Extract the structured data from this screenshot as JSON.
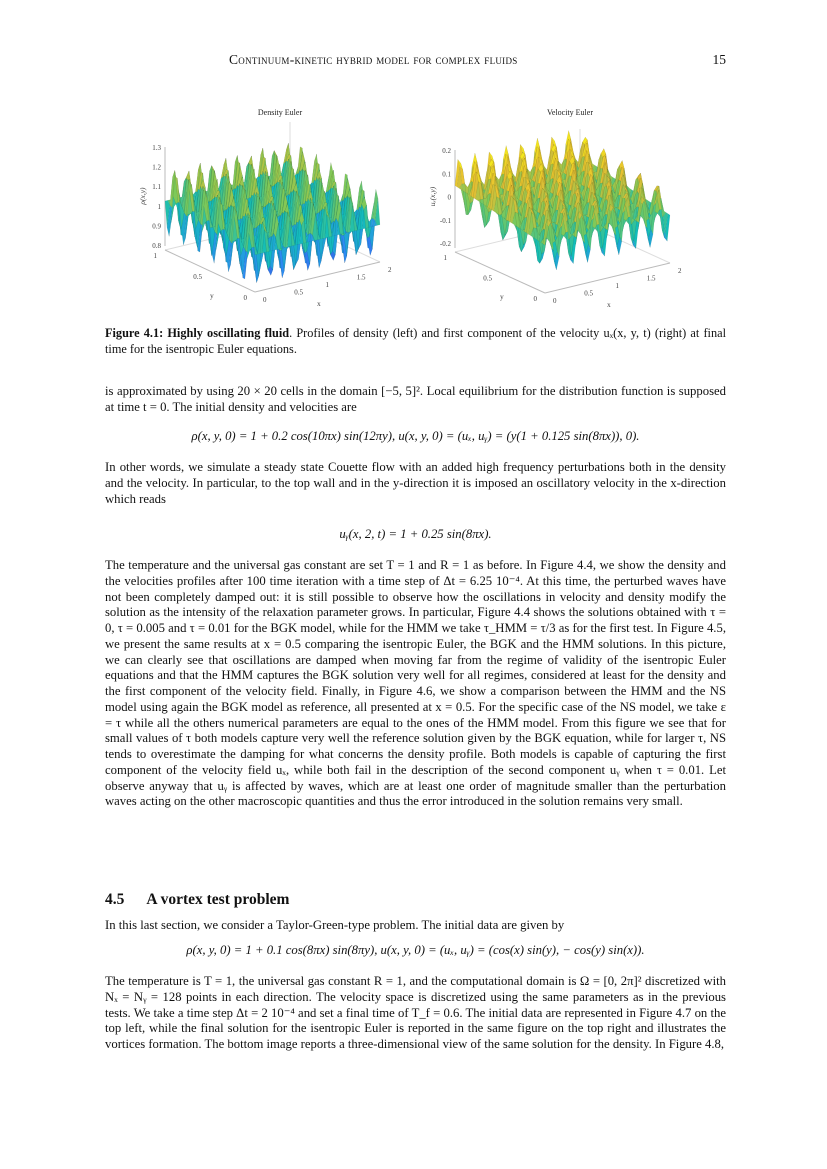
{
  "header": {
    "running_title": "Continuum-kinetic hybrid model for complex fluids",
    "page_number": "15"
  },
  "figure": {
    "left": {
      "title": "Density Euler",
      "zlabel": "ρ(x,y)",
      "xlabel": "x",
      "ylabel": "y",
      "zticks": [
        "1.3",
        "1.2",
        "1.1",
        "1",
        "0.9",
        "0.8"
      ],
      "xticks": [
        "0",
        "0.5",
        "1",
        "1.5",
        "2"
      ],
      "yticks": [
        "0",
        "0.5",
        "1"
      ]
    },
    "right": {
      "title": "Velocity Euler",
      "zlabel": "uₓ(x,y)",
      "xlabel": "x",
      "ylabel": "y",
      "zticks": [
        "0.2",
        "0.1",
        "0",
        "-0.1",
        "-0.2"
      ],
      "xticks": [
        "0",
        "0.5",
        "1",
        "1.5",
        "2"
      ],
      "yticks": [
        "0",
        "0.5",
        "1"
      ]
    },
    "caption_label": "Figure 4.1: Highly oscillating fluid",
    "caption_text": ". Profiles of density (left) and first component of the velocity uₓ(x, y, t) (right) at final time for the isentropic Euler equations."
  },
  "body": {
    "p1": "is approximated by using 20 × 20 cells in the domain [−5, 5]². Local equilibrium for the distribution function is supposed at time t = 0. The initial density and velocities are",
    "eq1": "ρ(x, y, 0) = 1 + 0.2 cos(10πx) sin(12πy),  u(x, y, 0) = (uₓ, uᵧ) = (y(1 + 0.125 sin(8πx)), 0).",
    "p2": "In other words, we simulate a steady state Couette flow with an added high frequency perturbations both in the density and the velocity. In particular, to the top wall and in the y-direction it is imposed an oscillatory velocity in the x-direction which reads",
    "eq2": "uᵧ(x, 2, t) = 1 + 0.25 sin(8πx).",
    "p3": "The temperature and the universal gas constant are set T = 1 and R = 1 as before. In Figure 4.4, we show the density and the velocities profiles after 100 time iteration with a time step of Δt = 6.25 10⁻⁴. At this time, the perturbed waves have not been completely damped out: it is still possible to observe how the oscillations in velocity and density modify the solution as the intensity of the relaxation parameter grows. In particular, Figure 4.4 shows the solutions obtained with τ = 0, τ = 0.005 and τ = 0.01 for the BGK model, while for the HMM we take τ_HMM = τ/3 as for the first test. In Figure 4.5, we present the same results at x = 0.5 comparing the isentropic Euler, the BGK and the HMM solutions. In this picture, we can clearly see that oscillations are damped when moving far from the regime of validity of the isentropic Euler equations and that the HMM captures the BGK solution very well for all regimes, considered at least for the density and the first component of the velocity field. Finally, in Figure 4.6, we show a comparison between the HMM and the NS model using again the BGK model as reference, all presented at x = 0.5. For the specific case of the NS model, we take ε = τ while all the others numerical parameters are equal to the ones of the HMM model. From this figure we see that for small values of τ both models capture very well the reference solution given by the BGK equation, while for larger τ, NS tends to overestimate the damping for what concerns the density profile. Both models is capable of capturing the first component of the velocity field uₓ, while both fail in the description of the second component uᵧ when τ = 0.01. Let observe anyway that uᵧ is affected by waves, which are at least one order of magnitude smaller than the perturbation waves acting on the other macroscopic quantities and thus the error introduced in the solution remains very small.",
    "section_number": "4.5",
    "section_title": "A vortex test problem",
    "p4": "In this last section, we consider a Taylor-Green-type problem. The initial data are given by",
    "eq3": "ρ(x, y, 0) = 1 + 0.1 cos(8πx) sin(8πy),  u(x, y, 0) = (uₓ, uᵧ) = (cos(x) sin(y), − cos(y) sin(x)).",
    "p5": "The temperature is T = 1, the universal gas constant R = 1, and the computational domain is Ω = [0, 2π]² discretized with Nₓ = Nᵧ = 128 points in each direction. The velocity space is discretized using the same parameters as in the previous tests. We take a time step Δt = 2 10⁻⁴ and set a final time of T_f = 0.6. The initial data are represented in Figure 4.7 on the top left, while the final solution for the isentropic Euler is reported in the same figure on the top right and illustrates the vortices formation. The bottom image reports a three-dimensional view of the same solution for the density. In Figure 4.8,"
  }
}
